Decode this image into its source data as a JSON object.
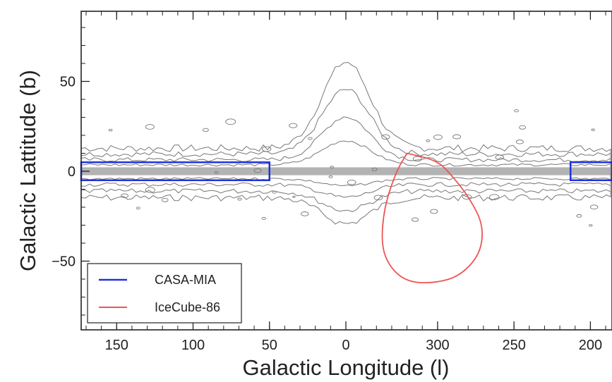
{
  "chart_data": {
    "type": "scatter",
    "xlabel": "Galactic Longitude (l)",
    "ylabel": "Galactic Lattitude (b)",
    "x_tick_labels": [
      "150",
      "100",
      "50",
      "0",
      "300",
      "250",
      "200"
    ],
    "x_tick_values": [
      150,
      100,
      50,
      0,
      300,
      250,
      200
    ],
    "y_tick_labels": [
      "50",
      "0",
      "−50"
    ],
    "y_tick_values": [
      50,
      0,
      -50
    ],
    "ylim": [
      -90,
      90
    ],
    "xlim_display": [
      180,
      -180
    ],
    "x_axis_note": "longitude wraps: left edge 180, decreasing to 0 at centre, continuing 359 → 180 on the right",
    "grid": false,
    "legend_position": "lower-left",
    "series": [
      {
        "name": "CASA-MIA",
        "kind": "box",
        "color": "#2233dd",
        "regions": [
          {
            "l_from": 180,
            "l_to": 50,
            "b_min": -5,
            "b_max": 5
          },
          {
            "l_from": 213,
            "l_to": 180,
            "b_min": -5,
            "b_max": 5
          }
        ]
      },
      {
        "name": "IceCube-86",
        "kind": "contour",
        "color": "#ee5555",
        "center_l": 292,
        "center_b": -27,
        "outline": [
          [
            320,
            10
          ],
          [
            300,
            6
          ],
          [
            290,
            -3
          ],
          [
            279,
            -15
          ],
          [
            270,
            -30
          ],
          [
            272,
            -46
          ],
          [
            285,
            -58
          ],
          [
            300,
            -62
          ],
          [
            318,
            -62
          ],
          [
            330,
            -55
          ],
          [
            337,
            -42
          ],
          [
            335,
            -20
          ],
          [
            327,
            0
          ],
          [
            320,
            10
          ]
        ]
      },
      {
        "name": "",
        "kind": "galactic-plane-contours",
        "color": "#777777",
        "description_values": {
          "band_half_width_b": 8,
          "bulge_peak_b": 30,
          "bulge_center_l": 0
        }
      }
    ]
  }
}
